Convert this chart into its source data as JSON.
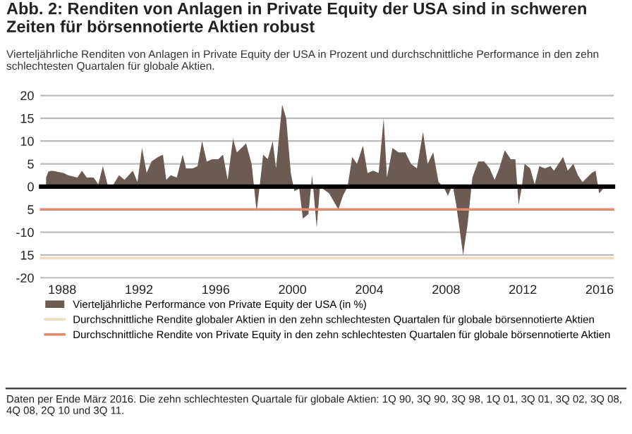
{
  "chart_data": {
    "type": "area",
    "title": "Abb. 2: Renditen von Anlagen in Private Equity der USA sind in schweren Zeiten für börsennotierte Aktien robust",
    "subtitle": "Vierteljährliche Renditen von Anlagen in Private Equity der USA in Prozent und durchschnittliche Performance in den zehn schlechtesten Quartalen für globale Aktien.",
    "series": [
      {
        "name": "Vierteljährliche Performance von Private Equity der USA (in %)",
        "color": "#6b5b52",
        "x": [
          1987.16,
          1987.28,
          1987.47,
          1988.07,
          1988.31,
          1988.79,
          1989.03,
          1989.28,
          1989.64,
          1989.88,
          1990.12,
          1990.36,
          1990.6,
          1990.96,
          1991.25,
          1991.68,
          1991.92,
          1992.16,
          1992.4,
          1992.65,
          1993.0,
          1993.25,
          1993.42,
          1993.66,
          1993.97,
          1994.28,
          1994.45,
          1994.81,
          1995.05,
          1995.29,
          1995.53,
          1995.82,
          1996.13,
          1996.38,
          1996.62,
          1996.9,
          1997.1,
          1997.34,
          1997.58,
          1997.87,
          1998.13,
          1998.3,
          1998.47,
          1998.71,
          1998.97,
          1999.14,
          1999.46,
          1999.67,
          1999.91,
          2000.1,
          2000.35,
          2000.54,
          2000.83,
          2001.02,
          2001.26,
          2001.43,
          2001.91,
          2002.39,
          2002.63,
          2002.87,
          2003.11,
          2003.36,
          2003.67,
          2003.91,
          2004.2,
          2004.49,
          2004.75,
          2004.92,
          2005.21,
          2005.52,
          2005.88,
          2006.17,
          2006.48,
          2006.8,
          2007.04,
          2007.33,
          2007.61,
          2007.86,
          2008.1,
          2008.34,
          2008.53,
          2008.89,
          2009.13,
          2009.37,
          2009.68,
          2009.99,
          2010.27,
          2010.53,
          2010.77,
          2011.06,
          2011.37,
          2011.61,
          2011.78,
          2011.95,
          2012.09,
          2012.38,
          2012.62,
          2012.86,
          2013.15,
          2013.44,
          2013.62,
          2013.86,
          2014.1,
          2014.34,
          2014.63,
          2014.87,
          2015.11,
          2015.35,
          2015.59,
          2015.79,
          2015.98,
          2016.27
        ],
        "values": [
          2,
          3.3,
          3.5,
          3,
          2.5,
          2,
          3.5,
          2,
          2,
          0.5,
          4.5,
          0.5,
          0,
          2.5,
          1.5,
          3.5,
          1,
          8.5,
          3,
          5.5,
          6.5,
          7,
          1.5,
          2.5,
          2,
          7,
          4,
          4,
          4.5,
          10,
          5.5,
          6,
          6,
          7,
          1.5,
          10.5,
          7.5,
          8.5,
          9.5,
          5,
          -5.5,
          0.5,
          7,
          6,
          10,
          4,
          18,
          15,
          3,
          -1,
          -0.5,
          -7,
          -6,
          2.5,
          -9,
          0,
          -1.5,
          -5,
          -2,
          0,
          6.5,
          5,
          9,
          3,
          3.5,
          3,
          15,
          2,
          8.5,
          7.5,
          7.5,
          5,
          4,
          12,
          5,
          7.5,
          1,
          0,
          -2,
          0.5,
          -4,
          -15,
          -8,
          2,
          5.5,
          5.5,
          4,
          1.5,
          4,
          8,
          6,
          6,
          -4,
          0,
          5,
          4,
          0.5,
          4.5,
          4,
          4.5,
          3.5,
          5,
          6.5,
          3.5,
          5,
          2.5,
          1,
          2,
          3,
          3.5,
          -1.5,
          0
        ]
      }
    ],
    "xlim": [
      1986.9,
      2016.7
    ],
    "xticks": [
      1988,
      1992,
      1996,
      2000,
      2004,
      2008,
      2012,
      2016
    ],
    "ylim": [
      -20,
      20
    ],
    "yticks": [
      20,
      15,
      10,
      5,
      0,
      {
        "value": -5,
        "label": "5"
      },
      -10,
      {
        "value": -15,
        "label": "15"
      },
      -20
    ],
    "grid": "y",
    "ref_lines": [
      {
        "axis": "y",
        "value": 0,
        "color": "#000000"
      },
      {
        "axis": "y",
        "value": -15.7,
        "color": "#eedcc0",
        "label": "Durchschnittliche Rendite globaler Aktien in den zehn schlechtesten Quartalen für globale börsennotierte Aktien"
      },
      {
        "axis": "y",
        "value": -5,
        "color": "#e08a70",
        "label": "Durchschnittliche Rendite von Private Equity in den zehn schlechtesten Quartalen für globale börsennotierte Aktien"
      }
    ],
    "legend": "bottom",
    "annotations": [
      "Daten per Ende März 2016. Die zehn schlechtesten Quartale für globale Aktien: 1Q 90, 3Q 90, 3Q 98, 1Q 01, 3Q 01, 3Q 02, 3Q 08, 4Q 08, 2Q 10 und 3Q 11."
    ]
  }
}
